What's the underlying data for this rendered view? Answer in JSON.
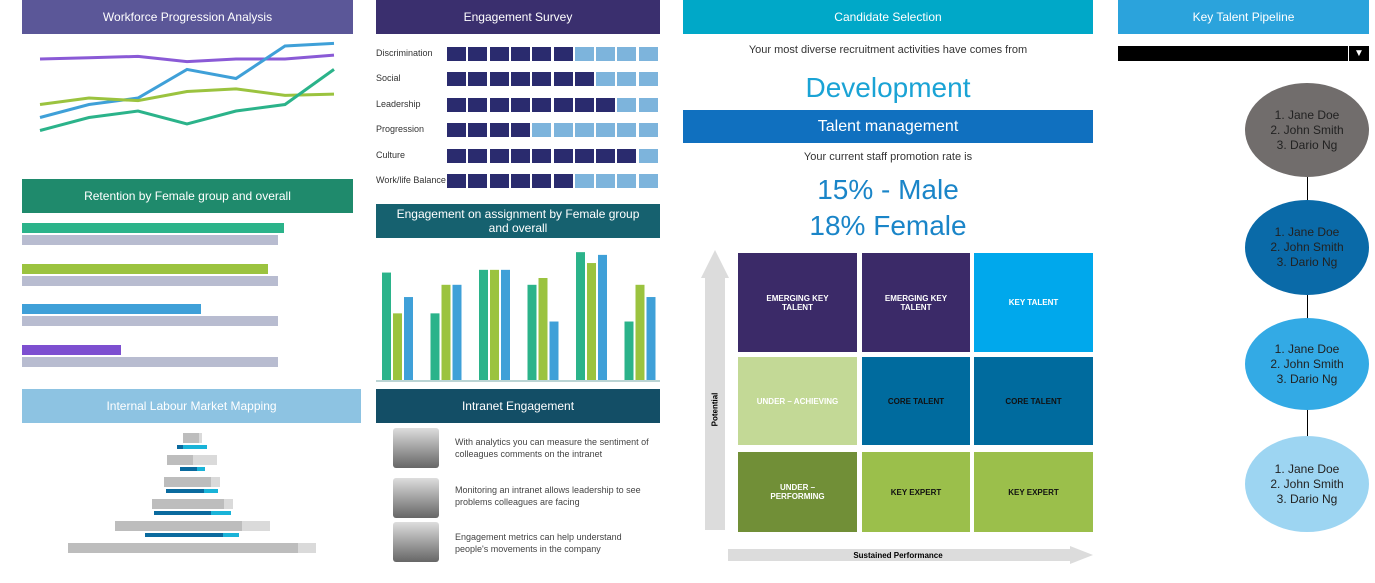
{
  "panels": {
    "workforce": {
      "title": "Workforce Progression Analysis",
      "color": "#5b5798"
    },
    "retention": {
      "title": "Retention by Female group and overall",
      "color": "#1f8a6c"
    },
    "labour": {
      "title": "Internal Labour Market Mapping",
      "color": "#8dc3e2"
    },
    "survey": {
      "title": "Engagement Survey",
      "color": "#3a2f6e"
    },
    "assignment": {
      "title": "Engagement on assignment  by Female group and overall",
      "color": "#16616f"
    },
    "intranet": {
      "title": "Intranet Engagement",
      "color": "#134e66",
      "items": [
        "With analytics you can measure the sentiment of colleagues comments on the intranet",
        "Monitoring an intranet allows leadership to see problems colleagues are facing",
        "Engagement metrics can help understand people's movements in the company"
      ]
    },
    "candidate": {
      "title": "Candidate Selection",
      "color": "#00a8c8",
      "intro": "Your most diverse recruitment activities have comes from",
      "highlight": "Development"
    },
    "talent": {
      "title": "Talent management",
      "color": "#1070bf",
      "intro": "Your current staff promotion rate is",
      "male": "15% - Male",
      "female": "18% Female",
      "y_axis": "Potential",
      "x_axis": "Sustained Performance",
      "grid": [
        {
          "label": "EMERGING KEY TALENT",
          "bg": "#3b2a68",
          "fg": "#fff"
        },
        {
          "label": "EMERGING KEY TALENT",
          "bg": "#3b2a68",
          "fg": "#fff"
        },
        {
          "label": "KEY TALENT",
          "bg": "#00a8ec",
          "fg": "#fff"
        },
        {
          "label": "UNDER – ACHIEVING",
          "bg": "#c3d996",
          "fg": "#fff"
        },
        {
          "label": "CORE TALENT",
          "bg": "#006b9e",
          "fg": "#111"
        },
        {
          "label": "CORE TALENT",
          "bg": "#006b9e",
          "fg": "#111"
        },
        {
          "label": "UNDER – PERFORMING",
          "bg": "#718f37",
          "fg": "#fff"
        },
        {
          "label": "KEY EXPERT",
          "bg": "#9bbf4b",
          "fg": "#111"
        },
        {
          "label": "KEY EXPERT",
          "bg": "#9bbf4b",
          "fg": "#111"
        }
      ]
    },
    "pipeline": {
      "title": "Key Talent Pipeline",
      "color": "#2ba3dc",
      "dropdown_value": "",
      "stages": [
        {
          "names": [
            "1. Jane Doe",
            "2. John Smith",
            "3. Dario Ng"
          ],
          "color": "#716d6c"
        },
        {
          "names": [
            "1. Jane Doe",
            "2. John Smith",
            "3. Dario Ng"
          ],
          "color": "#0a6aa8"
        },
        {
          "names": [
            "1. Jane Doe",
            "2. John Smith",
            "3. Dario Ng"
          ],
          "color": "#33aae5"
        },
        {
          "names": [
            "1. Jane Doe",
            "2. John Smith",
            "3. Dario Ng"
          ],
          "color": "#9dd5f2"
        }
      ]
    }
  },
  "chart_data": [
    {
      "type": "line",
      "title": "Workforce Progression Analysis",
      "ylim": [
        0,
        100
      ],
      "x": [
        1,
        2,
        3,
        4,
        5,
        6,
        7
      ],
      "series": [
        {
          "color": "#8a5ad6",
          "values": [
            70,
            71,
            72,
            68,
            70,
            70,
            73
          ]
        },
        {
          "color": "#3fa0d8",
          "values": [
            25,
            35,
            40,
            62,
            55,
            80,
            82
          ]
        },
        {
          "color": "#9bc33f",
          "values": [
            35,
            40,
            38,
            45,
            47,
            42,
            43
          ]
        },
        {
          "color": "#2bb38a",
          "values": [
            15,
            25,
            30,
            20,
            30,
            35,
            62
          ]
        }
      ]
    },
    {
      "type": "bar",
      "orientation": "horizontal",
      "title": "Retention by Female group and overall",
      "xlim": [
        0,
        100
      ],
      "series": [
        {
          "values": [
            82,
            77,
            56,
            31
          ],
          "colors": [
            "#2bb38a",
            "#9bc33f",
            "#3fa0d8",
            "#7d4fd0"
          ]
        },
        {
          "values": [
            80,
            80,
            80,
            80
          ],
          "colors": [
            "#b8bcd0",
            "#b8bcd0",
            "#b8bcd0",
            "#b8bcd0"
          ]
        }
      ]
    },
    {
      "type": "bar",
      "orientation": "horizontal",
      "title": "Internal Labour Market Mapping",
      "xlim": [
        0,
        100
      ],
      "tiers": [
        {
          "total": [
            16,
            3
          ],
          "sub": [
            6,
            24
          ]
        },
        {
          "total": [
            26,
            24
          ],
          "sub": [
            17,
            8
          ]
        },
        {
          "total": [
            47,
            9
          ],
          "sub": [
            38,
            14
          ]
        },
        {
          "total": [
            72,
            9
          ],
          "sub": [
            57,
            20
          ]
        },
        {
          "total": [
            127,
            28
          ],
          "sub": [
            78,
            16
          ]
        },
        {
          "total": [
            230,
            18
          ],
          "sub": [
            0,
            0
          ]
        }
      ]
    },
    {
      "type": "heatmap",
      "title": "Engagement Survey",
      "max": 10,
      "categories": [
        "Discrimination",
        "Social",
        "Leadership",
        "Progression",
        "Culture",
        "Work/life Balance"
      ],
      "values": [
        6,
        7,
        8,
        4,
        9,
        6
      ],
      "colors": {
        "filled": "#2a2b6e",
        "empty": "#7db4dc"
      }
    },
    {
      "type": "bar",
      "title": "Engagement on assignment  by Female group and overall",
      "ylim": [
        0,
        100
      ],
      "categories": [
        "1",
        "2",
        "3",
        "4",
        "5",
        "6"
      ],
      "series": [
        {
          "color": "#2bb38a",
          "values": [
            79,
            49,
            81,
            70,
            94,
            43
          ]
        },
        {
          "color": "#9bc33f",
          "values": [
            49,
            70,
            81,
            75,
            86,
            70
          ]
        },
        {
          "color": "#3fa0d8",
          "values": [
            61,
            70,
            81,
            43,
            92,
            61
          ]
        }
      ]
    }
  ]
}
